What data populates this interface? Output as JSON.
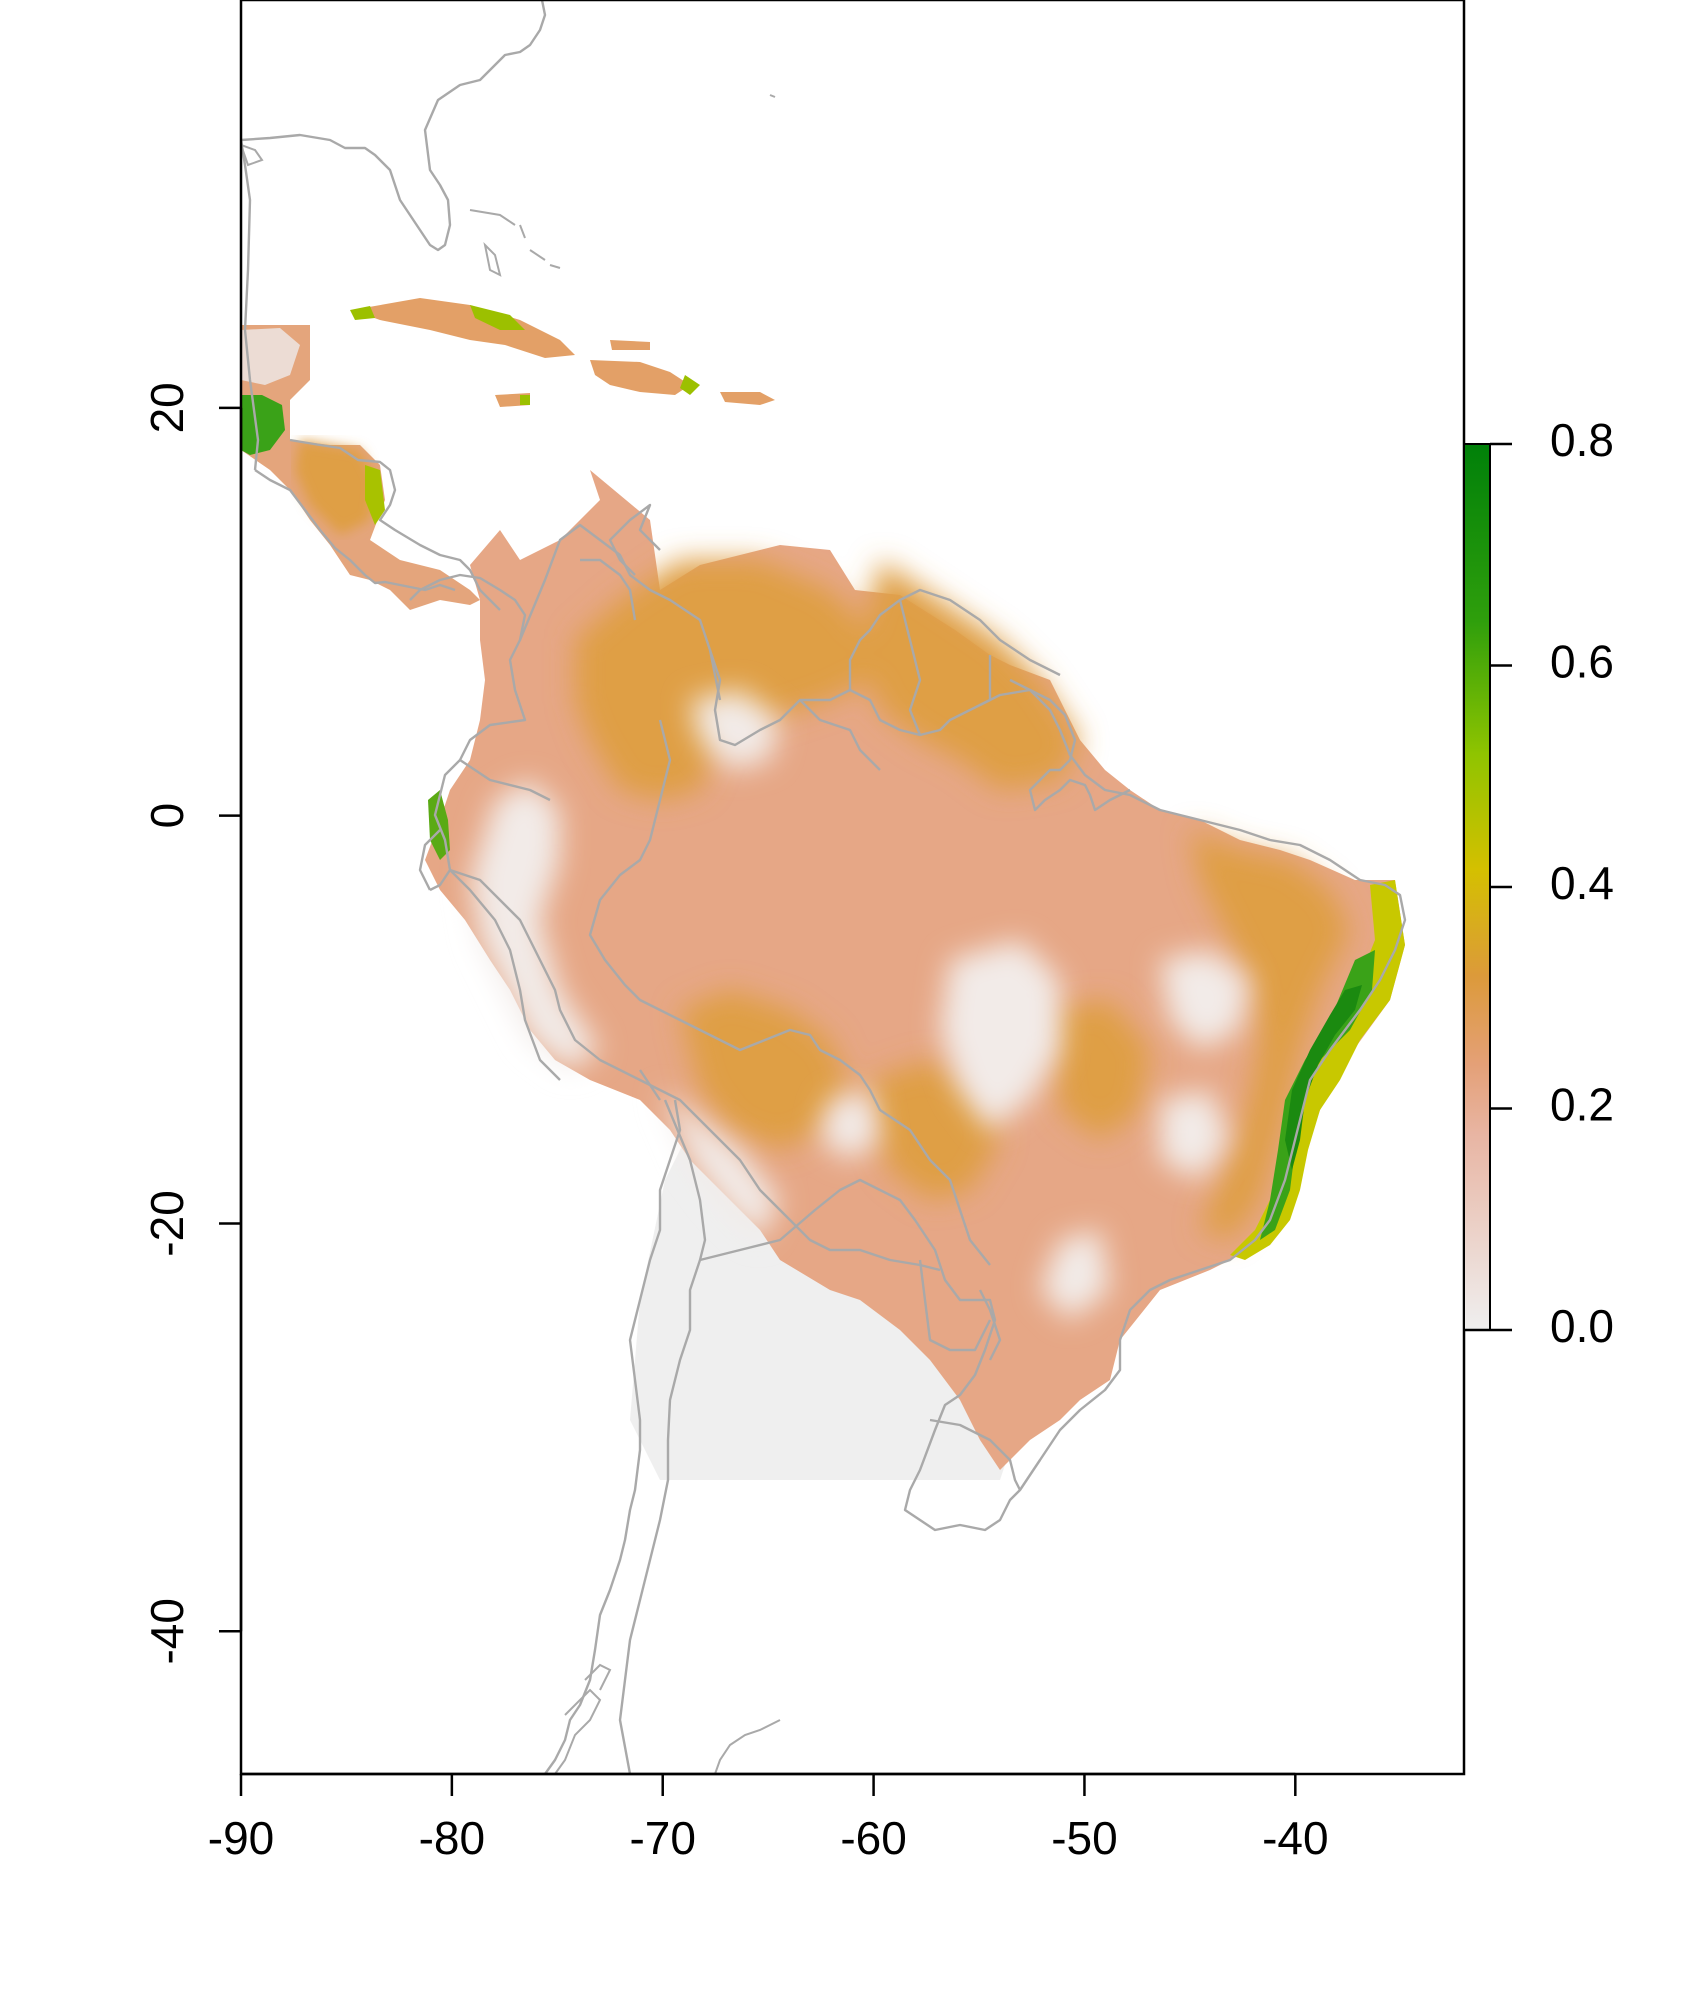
{
  "chart_data": {
    "type": "heatmap",
    "title": "",
    "xlabel": "",
    "ylabel": "",
    "xlim": [
      -90,
      -32
    ],
    "ylim": [
      -47,
      40
    ],
    "x_ticks": [
      "-90",
      "-80",
      "-70",
      "-60",
      "-50",
      "-40"
    ],
    "y_ticks": [
      "20",
      "0",
      "-20",
      "-40"
    ],
    "colorbar": {
      "ticks": [
        "0.0",
        "0.2",
        "0.4",
        "0.6",
        "0.8"
      ],
      "range": [
        0,
        0.8
      ],
      "colors": [
        "#efefef",
        "#e8a27e",
        "#dfa038",
        "#d4c800",
        "#7fc000",
        "#00840a"
      ]
    },
    "grid": false,
    "border_color": "#a9a9a9"
  }
}
